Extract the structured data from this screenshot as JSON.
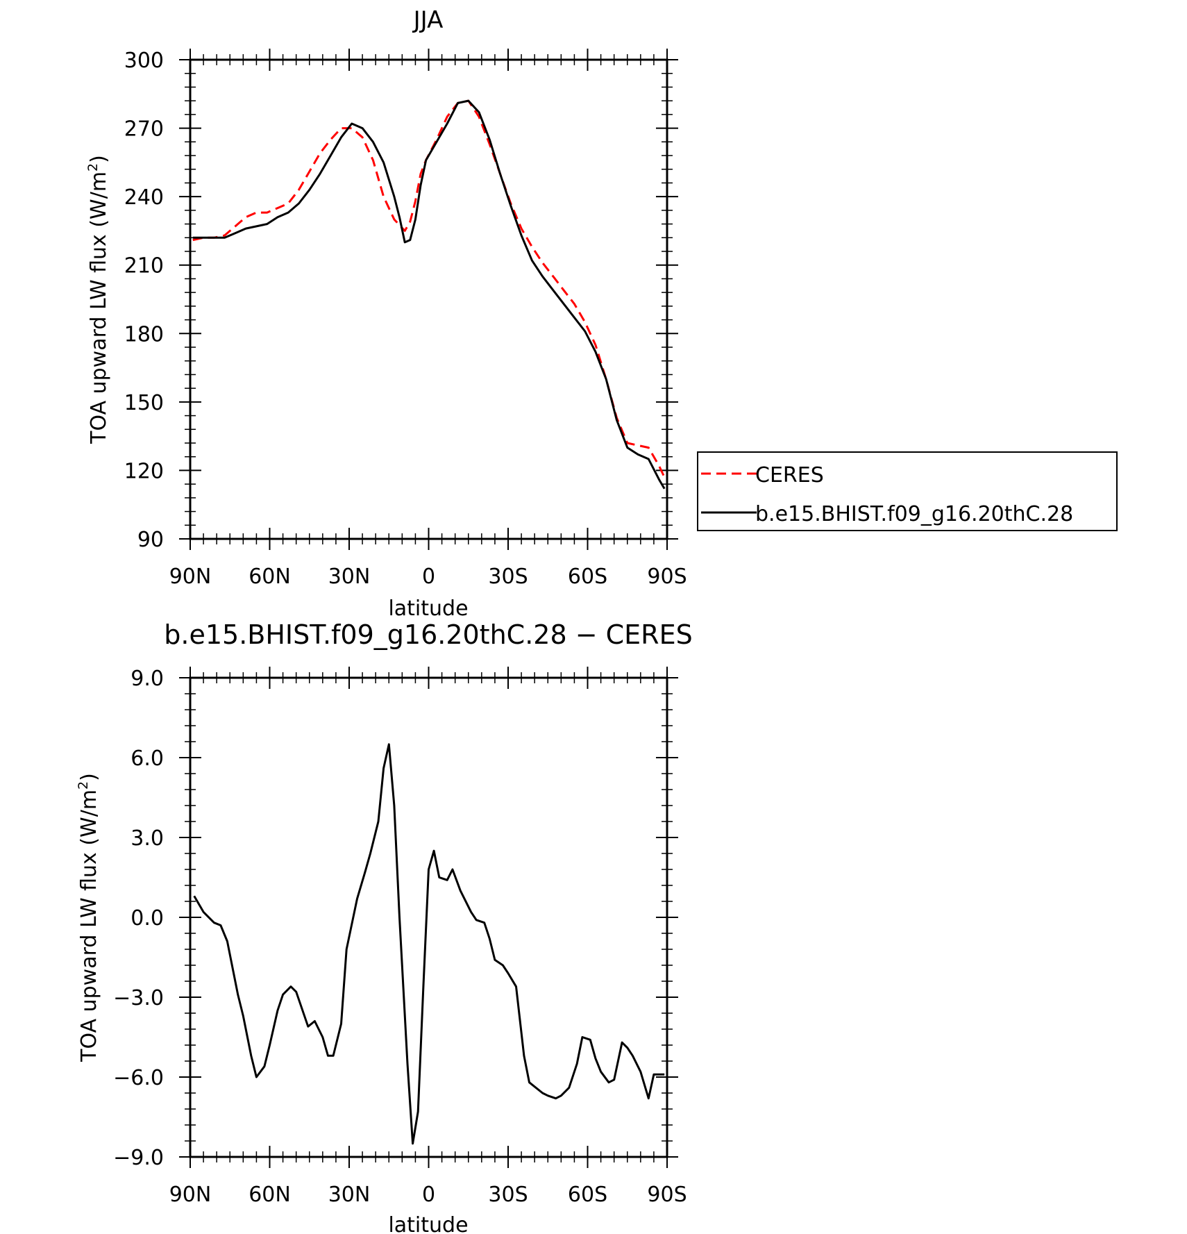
{
  "chart_data": [
    {
      "type": "line",
      "title": "JJA",
      "xlabel": "latitude",
      "ylabel_main": "TOA upward LW flux (W/m",
      "ylabel_sup": "2",
      "ylabel_close": ")",
      "ylim": [
        90,
        300
      ],
      "yticks": [
        {
          "v": 90,
          "label": "90"
        },
        {
          "v": 120,
          "label": "120"
        },
        {
          "v": 150,
          "label": "150"
        },
        {
          "v": 180,
          "label": "180"
        },
        {
          "v": 210,
          "label": "210"
        },
        {
          "v": 240,
          "label": "240"
        },
        {
          "v": 270,
          "label": "270"
        },
        {
          "v": 300,
          "label": "300"
        }
      ],
      "xlim": [
        90,
        -90
      ],
      "xticks": [
        {
          "v": 90,
          "label": "90N"
        },
        {
          "v": 60,
          "label": "60N"
        },
        {
          "v": 30,
          "label": "30N"
        },
        {
          "v": 0,
          "label": "0"
        },
        {
          "v": -30,
          "label": "30S"
        },
        {
          "v": -60,
          "label": "60S"
        },
        {
          "v": -90,
          "label": "90S"
        }
      ],
      "series": [
        {
          "name": "CERES",
          "color": "#ff0000",
          "dash": "dashed",
          "x": [
            89,
            85,
            81,
            77,
            73,
            69,
            65,
            61,
            57,
            53,
            49,
            45,
            41,
            37,
            33,
            29,
            25,
            21,
            17,
            13,
            9,
            7,
            5,
            3,
            1,
            -3,
            -7,
            -11,
            -15,
            -19,
            -23,
            -27,
            -31,
            -35,
            -39,
            -43,
            -47,
            -51,
            -55,
            -59,
            -63,
            -67,
            -71,
            -75,
            -79,
            -83,
            -87,
            -89
          ],
          "y": [
            221,
            222,
            222,
            223,
            227,
            231,
            233,
            233,
            235,
            237,
            243,
            251,
            259,
            265,
            270,
            270,
            266,
            256,
            240,
            230,
            225,
            229,
            238,
            250,
            256,
            265,
            275,
            281,
            282,
            275,
            263,
            250,
            237,
            226,
            218,
            211,
            205,
            199,
            193,
            185,
            175,
            160,
            143,
            132,
            131,
            130,
            122,
            117
          ]
        },
        {
          "name": "b.e15.BHIST.f09_g16.20thC.28",
          "color": "#000000",
          "dash": "solid",
          "x": [
            89,
            85,
            81,
            77,
            73,
            69,
            65,
            61,
            57,
            53,
            49,
            45,
            41,
            37,
            33,
            29,
            25,
            21,
            17,
            13,
            11,
            9,
            7,
            5,
            3,
            1,
            -3,
            -7,
            -11,
            -15,
            -19,
            -23,
            -27,
            -31,
            -35,
            -39,
            -43,
            -47,
            -51,
            -55,
            -59,
            -63,
            -67,
            -71,
            -75,
            -79,
            -83,
            -87,
            -89
          ],
          "y": [
            222,
            222,
            222,
            222,
            224,
            226,
            227,
            228,
            231,
            233,
            237,
            243,
            250,
            258,
            266,
            272,
            270,
            264,
            255,
            240,
            231,
            220,
            221,
            230,
            245,
            256,
            264,
            272,
            281,
            282,
            277,
            265,
            250,
            236,
            223,
            212,
            205,
            199,
            193,
            187,
            181,
            172,
            160,
            142,
            130,
            127,
            125,
            116,
            112
          ]
        }
      ],
      "legend": {
        "position": "right",
        "entries": [
          "CERES",
          "b.e15.BHIST.f09_g16.20thC.28"
        ]
      }
    },
    {
      "type": "line",
      "title": "b.e15.BHIST.f09_g16.20thC.28 − CERES",
      "xlabel": "latitude",
      "ylabel_main": "TOA upward LW flux (W/m",
      "ylabel_sup": "2",
      "ylabel_close": ")",
      "ylim": [
        -9,
        9
      ],
      "yticks": [
        {
          "v": -9,
          "label": "−9.0"
        },
        {
          "v": -6,
          "label": "−6.0"
        },
        {
          "v": -3,
          "label": "−3.0"
        },
        {
          "v": 0,
          "label": "0.0"
        },
        {
          "v": 3,
          "label": "3.0"
        },
        {
          "v": 6,
          "label": "6.0"
        },
        {
          "v": 9,
          "label": "9.0"
        }
      ],
      "xlim": [
        90,
        -90
      ],
      "xticks": [
        {
          "v": 90,
          "label": "90N"
        },
        {
          "v": 60,
          "label": "60N"
        },
        {
          "v": 30,
          "label": "30N"
        },
        {
          "v": 0,
          "label": "0"
        },
        {
          "v": -30,
          "label": "30S"
        },
        {
          "v": -60,
          "label": "60S"
        },
        {
          "v": -90,
          "label": "90S"
        }
      ],
      "series": [
        {
          "name": "",
          "color": "#000000",
          "dash": "solid",
          "x": [
            88.5,
            85,
            81,
            78.5,
            76,
            72,
            70,
            67,
            65,
            62,
            60,
            57,
            55,
            52,
            50,
            45.5,
            43,
            40,
            38,
            36,
            33,
            31,
            27,
            24,
            22,
            19,
            17,
            15,
            13,
            11,
            8,
            6,
            4,
            2,
            0,
            -2,
            -4,
            -7,
            -9,
            -12,
            -16,
            -18,
            -21,
            -23,
            -25,
            -28,
            -30,
            -33,
            -36,
            -38,
            -43,
            -45,
            -48,
            -50,
            -53,
            -56,
            -58,
            -61,
            -63,
            -65,
            -68,
            -70,
            -73,
            -75,
            -77,
            -80,
            -83,
            -85,
            -87,
            -89
          ],
          "y": [
            0.8,
            0.2,
            -0.2,
            -0.3,
            -0.9,
            -2.9,
            -3.7,
            -5.2,
            -6.0,
            -5.6,
            -4.8,
            -3.5,
            -2.9,
            -2.6,
            -2.8,
            -4.1,
            -3.9,
            -4.5,
            -5.2,
            -5.2,
            -4.0,
            -1.2,
            0.7,
            1.7,
            2.4,
            3.6,
            5.6,
            6.5,
            4.2,
            0.0,
            -5.5,
            -8.5,
            -7.3,
            -2.6,
            1.8,
            2.5,
            1.5,
            1.4,
            1.8,
            1.0,
            0.2,
            -0.1,
            -0.2,
            -0.8,
            -1.6,
            -1.8,
            -2.1,
            -2.6,
            -5.2,
            -6.2,
            -6.6,
            -6.7,
            -6.8,
            -6.7,
            -6.4,
            -5.5,
            -4.5,
            -4.6,
            -5.3,
            -5.8,
            -6.2,
            -6.1,
            -4.7,
            -4.9,
            -5.2,
            -5.8,
            -6.8,
            -5.9,
            -5.9,
            -5.9
          ]
        }
      ]
    }
  ]
}
